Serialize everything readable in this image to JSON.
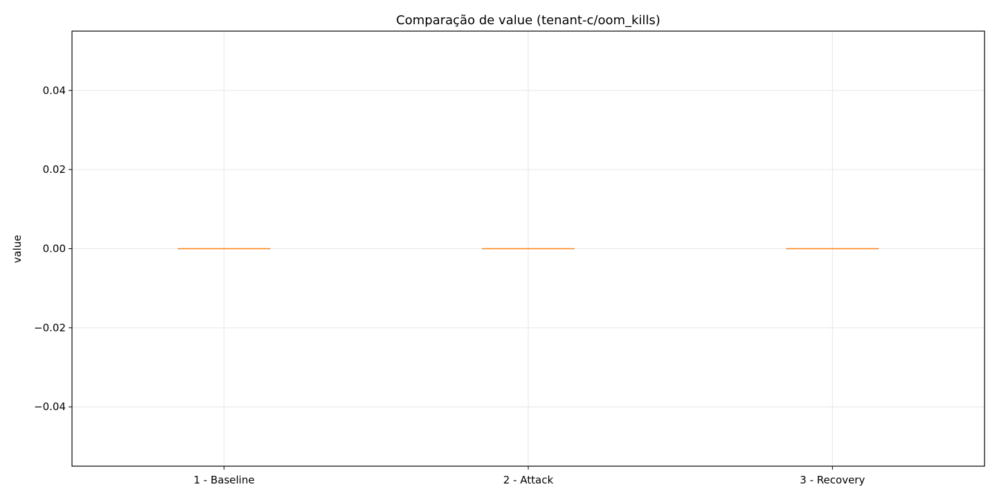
{
  "chart_data": {
    "type": "box",
    "title": "Comparação de value (tenant-c/oom_kills)",
    "xlabel": "",
    "ylabel": "value",
    "categories": [
      "1 - Baseline",
      "2 - Attack",
      "3 - Recovery"
    ],
    "values": [
      0,
      0,
      0
    ],
    "boxes": [
      {
        "category": "1 - Baseline",
        "min": 0,
        "q1": 0,
        "median": 0,
        "q3": 0,
        "max": 0
      },
      {
        "category": "2 - Attack",
        "min": 0,
        "q1": 0,
        "median": 0,
        "q3": 0,
        "max": 0
      },
      {
        "category": "3 - Recovery",
        "min": 0,
        "q1": 0,
        "median": 0,
        "q3": 0,
        "max": 0
      }
    ],
    "ylim": [
      -0.055,
      0.055
    ],
    "yticks": [
      -0.04,
      -0.02,
      0.0,
      0.02,
      0.04
    ],
    "ytick_labels": [
      "−0.04",
      "−0.02",
      "0.00",
      "0.02",
      "0.04"
    ],
    "grid": true,
    "legend": "none",
    "colors": {
      "box_edge": "#000000",
      "median": "#ff7f0e",
      "grid": "#e6e6e6"
    }
  }
}
